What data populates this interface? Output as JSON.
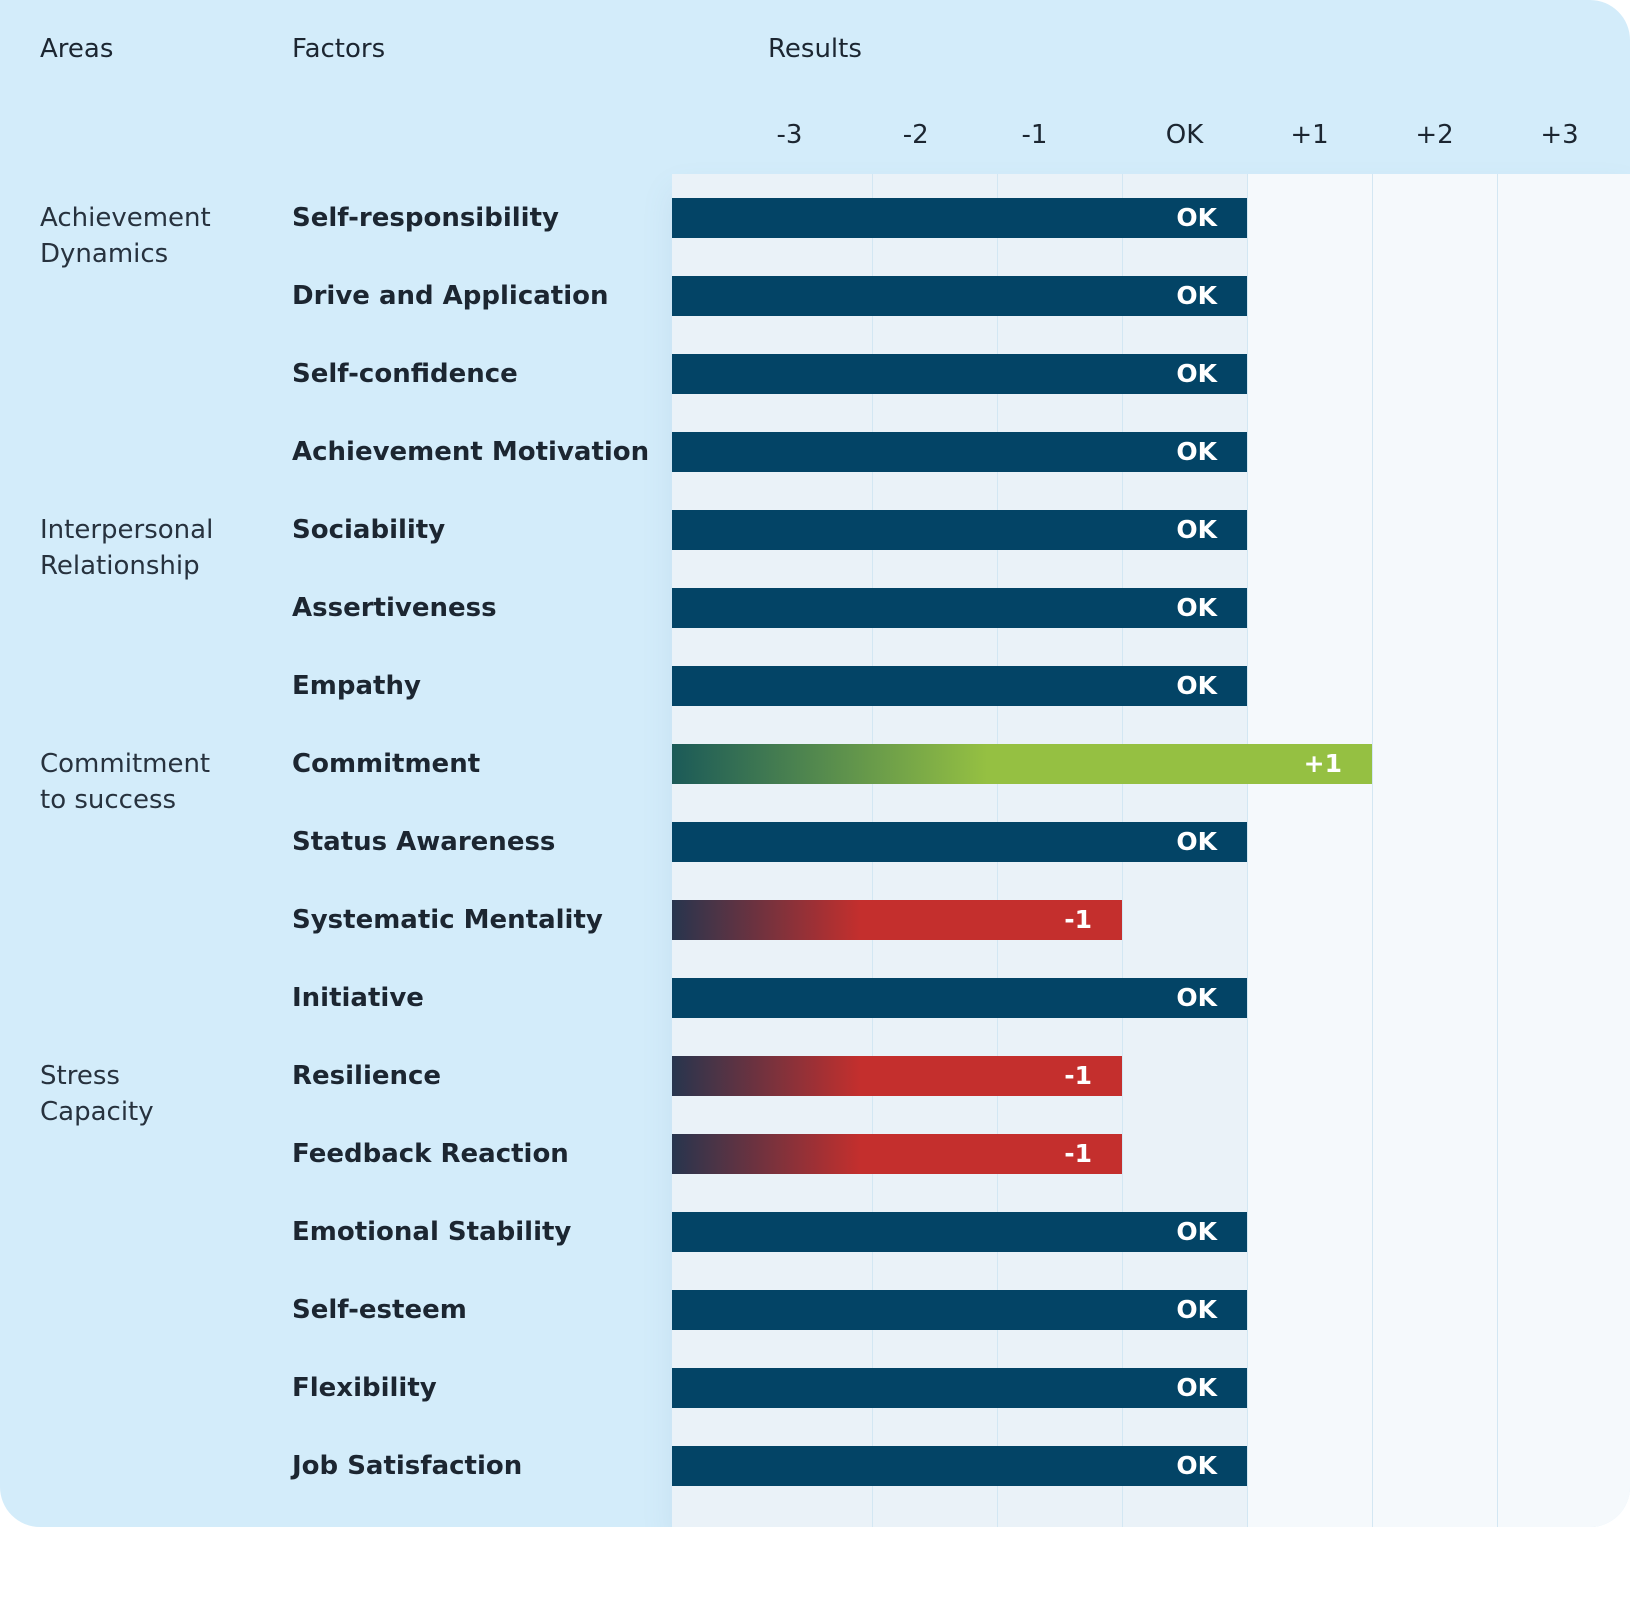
{
  "headers": {
    "areas": "Areas",
    "factors": "Factors",
    "results": "Results"
  },
  "chart_data": {
    "type": "bar",
    "orientation": "horizontal",
    "x_ticks": [
      "-3",
      "-2",
      "-1",
      "OK",
      "+1",
      "+2",
      "+3"
    ],
    "xlim": [
      -4,
      3
    ],
    "grid": true,
    "colors": {
      "ok": "#034466",
      "positive": "#95c042",
      "positive_start": "#1b5a58",
      "negative": "#c42f2d",
      "negative_start": "#27354e"
    },
    "areas": [
      {
        "label": "Achievement\nDynamics",
        "first_row": 0
      },
      {
        "label": "Interpersonal\nRelationship",
        "first_row": 4
      },
      {
        "label": "Commitment\nto success",
        "first_row": 7
      },
      {
        "label": "Stress\nCapacity",
        "first_row": 11
      }
    ],
    "rows": [
      {
        "factor": "Self-responsibility",
        "value": 0,
        "label": "OK"
      },
      {
        "factor": "Drive and Application",
        "value": 0,
        "label": "OK"
      },
      {
        "factor": "Self-confidence",
        "value": 0,
        "label": "OK"
      },
      {
        "factor": "Achievement Motivation",
        "value": 0,
        "label": "OK"
      },
      {
        "factor": "Sociability",
        "value": 0,
        "label": "OK"
      },
      {
        "factor": "Assertiveness",
        "value": 0,
        "label": "OK"
      },
      {
        "factor": "Empathy",
        "value": 0,
        "label": "OK"
      },
      {
        "factor": "Commitment",
        "value": 1,
        "label": "+1"
      },
      {
        "factor": "Status Awareness",
        "value": 0,
        "label": "OK"
      },
      {
        "factor": "Systematic Mentality",
        "value": -1,
        "label": "-1"
      },
      {
        "factor": "Initiative",
        "value": 0,
        "label": "OK"
      },
      {
        "factor": "Resilience",
        "value": -1,
        "label": "-1"
      },
      {
        "factor": "Feedback Reaction",
        "value": -1,
        "label": "-1"
      },
      {
        "factor": "Emotional Stability",
        "value": 0,
        "label": "OK"
      },
      {
        "factor": "Self-esteem",
        "value": 0,
        "label": "OK"
      },
      {
        "factor": "Flexibility",
        "value": 0,
        "label": "OK"
      },
      {
        "factor": "Job Satisfaction",
        "value": 0,
        "label": "OK"
      }
    ]
  }
}
